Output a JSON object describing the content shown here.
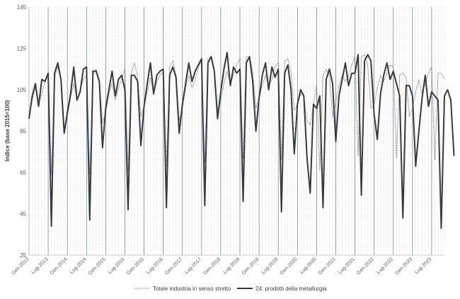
{
  "chart_data": {
    "type": "line",
    "title": "",
    "xlabel": "",
    "ylabel": "Indice (base 2015=100)",
    "ylim": [
      25,
      145
    ],
    "yticks": [
      25,
      45,
      65,
      85,
      105,
      125,
      145
    ],
    "grid": "vertical-dotted",
    "legend_position": "bottom",
    "x_tick_labels": [
      "Gen-2013",
      "Lug-2013",
      "Gen-2014",
      "Lug-2014",
      "Gen-2015",
      "Lug-2015",
      "Gen-2016",
      "Lug-2016",
      "Gen-2017",
      "Lug-2017",
      "Gen-2018",
      "Lug-2018",
      "Gen-2019",
      "Lug-2019",
      "Gen-2020",
      "Lug-2020",
      "Gen-2021",
      "Lug-2021",
      "Gen-2022",
      "Lug-2022",
      "Gen-2023",
      "Lug-2023"
    ],
    "x_start": "2013-01",
    "x_end": "2023-11",
    "series": [
      {
        "name": "Totale industria in senso stretto",
        "style": "dotted",
        "color": "#595959",
        "values": [
          92,
          100,
          106,
          98,
          103,
          109,
          113,
          64,
          111,
          116,
          110,
          87,
          92,
          101,
          108,
          100,
          105,
          110,
          112,
          64,
          112,
          115,
          110,
          89,
          94,
          103,
          108,
          100,
          106,
          110,
          115,
          66,
          113,
          118,
          111,
          92,
          97,
          104,
          111,
          103,
          109,
          112,
          114,
          68,
          116,
          119,
          112,
          90,
          96,
          106,
          112,
          106,
          110,
          116,
          119,
          70,
          120,
          121,
          115,
          95,
          100,
          108,
          114,
          108,
          112,
          117,
          120,
          72,
          121,
          121,
          114,
          96,
          101,
          107,
          112,
          107,
          110,
          116,
          118,
          71,
          119,
          120,
          113,
          95,
          98,
          103,
          102,
          90,
          88,
          98,
          107,
          66,
          112,
          115,
          112,
          92,
          99,
          107,
          112,
          109,
          112,
          117,
          121,
          73,
          121,
          122,
          117,
          96,
          98,
          106,
          112,
          109,
          113,
          117,
          116,
          72,
          112,
          113,
          111,
          92,
          96,
          104,
          110,
          103,
          108,
          113,
          116,
          71,
          113,
          113,
          110
        ]
      },
      {
        "name": "24: prodotti della metallurgia",
        "style": "solid",
        "color": "#3a3a3a",
        "values": [
          91,
          102,
          108,
          97,
          110,
          109,
          113,
          39,
          113,
          118,
          110,
          84,
          94,
          103,
          116,
          100,
          104,
          115,
          116,
          42,
          114,
          114,
          109,
          77,
          96,
          105,
          114,
          102,
          110,
          112,
          105,
          47,
          112,
          112,
          109,
          78,
          97,
          108,
          118,
          103,
          112,
          114,
          115,
          48,
          112,
          116,
          111,
          84,
          98,
          108,
          118,
          109,
          114,
          117,
          120,
          49,
          118,
          121,
          114,
          91,
          104,
          115,
          123,
          107,
          116,
          113,
          115,
          51,
          118,
          121,
          109,
          85,
          101,
          112,
          118,
          105,
          116,
          111,
          115,
          46,
          113,
          117,
          105,
          74,
          98,
          105,
          102,
          72,
          55,
          98,
          96,
          102,
          48,
          110,
          115,
          108,
          80,
          102,
          110,
          118,
          107,
          113,
          113,
          122,
          54,
          119,
          122,
          119,
          93,
          81,
          103,
          112,
          118,
          110,
          114,
          108,
          102,
          43,
          107,
          107,
          102,
          68,
          85,
          101,
          112,
          97,
          104,
          102,
          100,
          38,
          102,
          105,
          100,
          73
        ]
      }
    ]
  }
}
